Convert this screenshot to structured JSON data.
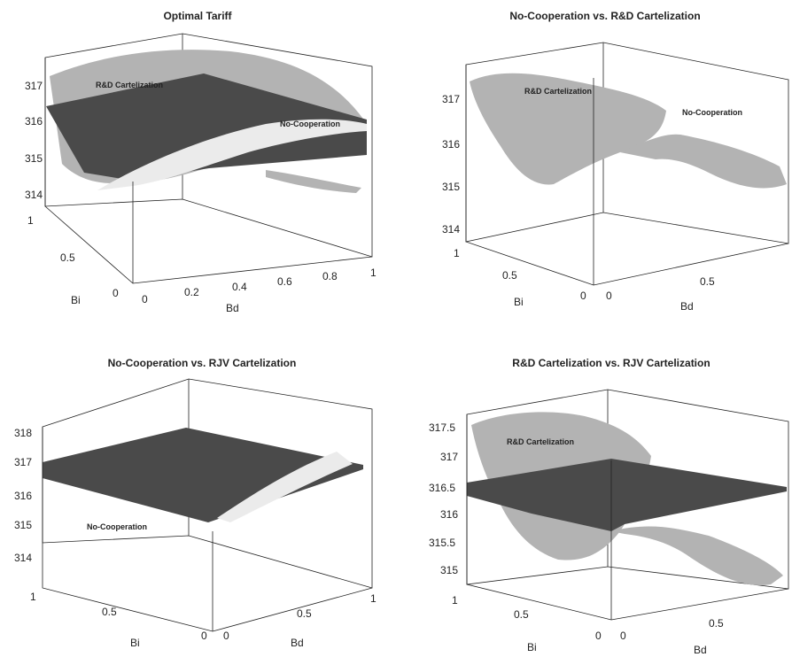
{
  "chart_data": [
    {
      "type": "surface",
      "title": "Optimal Tariff",
      "xlabel": "Bd",
      "ylabel": "Bi",
      "zlabel": "",
      "x_ticks": [
        "0",
        "0.2",
        "0.4",
        "0.6",
        "0.8",
        "1"
      ],
      "y_ticks": [
        "0",
        "0.5",
        "1"
      ],
      "z_ticks": [
        "314",
        "315",
        "316",
        "317"
      ],
      "xlim": [
        0,
        1
      ],
      "ylim": [
        0,
        1
      ],
      "zlim": [
        313.6,
        317.6
      ],
      "surfaces": [
        {
          "label": "R&D Cartelization",
          "shade": "#b3b3b3",
          "approx_z_range": [
            314.2,
            317.5
          ]
        },
        {
          "label": "",
          "shade": "#4a4a4a",
          "approx_z_range": [
            315.3,
            316.8
          ]
        },
        {
          "label": "No-Cooperation",
          "shade": "#ebebeb",
          "approx_z_range": [
            314.3,
            316.6
          ]
        }
      ]
    },
    {
      "type": "surface",
      "title": "No-Cooperation vs. R&D Cartelization",
      "xlabel": "Bd",
      "ylabel": "Bi",
      "zlabel": "",
      "x_ticks": [
        "0",
        "0.5"
      ],
      "y_ticks": [
        "0",
        "0.5",
        "1"
      ],
      "z_ticks": [
        "314",
        "315",
        "316",
        "317"
      ],
      "xlim": [
        0,
        1
      ],
      "ylim": [
        0,
        1
      ],
      "zlim": [
        313.6,
        317.6
      ],
      "surfaces": [
        {
          "label": "R&D Cartelization",
          "shade": "#b3b3b3",
          "approx_z_range": [
            315.0,
            317.5
          ]
        },
        {
          "label": "No-Cooperation",
          "shade": "#ebebeb",
          "approx_z_range": [
            314.8,
            316.8
          ]
        }
      ]
    },
    {
      "type": "surface",
      "title": "No-Cooperation vs. RJV Cartelization",
      "xlabel": "Bd",
      "ylabel": "Bi",
      "zlabel": "",
      "x_ticks": [
        "0",
        "0.5",
        "1"
      ],
      "y_ticks": [
        "0",
        "0.5",
        "1"
      ],
      "z_ticks": [
        "314",
        "315",
        "316",
        "317",
        "318"
      ],
      "xlim": [
        0,
        1
      ],
      "ylim": [
        0,
        1
      ],
      "zlim": [
        313.4,
        318.2
      ],
      "surfaces": [
        {
          "label": "",
          "shade": "#4a4a4a",
          "approx_z_range": [
            316.5,
            317.3
          ]
        },
        {
          "label": "No-Cooperation",
          "shade": "#ebebeb",
          "approx_z_range": [
            314.6,
            316.8
          ]
        }
      ]
    },
    {
      "type": "surface",
      "title": "R&D Cartelization vs. RJV Cartelization",
      "xlabel": "Bd",
      "ylabel": "Bi",
      "zlabel": "",
      "x_ticks": [
        "0",
        "0.5"
      ],
      "y_ticks": [
        "0",
        "0.5",
        "1"
      ],
      "z_ticks": [
        "315",
        "315.5",
        "316",
        "316.5",
        "317",
        "317.5"
      ],
      "xlim": [
        0,
        1
      ],
      "ylim": [
        0,
        1
      ],
      "zlim": [
        314.7,
        317.8
      ],
      "surfaces": [
        {
          "label": "R&D Cartelization",
          "shade": "#b3b3b3",
          "approx_z_range": [
            315.0,
            317.7
          ]
        },
        {
          "label": "",
          "shade": "#4a4a4a",
          "approx_z_range": [
            316.3,
            316.8
          ]
        }
      ]
    }
  ]
}
